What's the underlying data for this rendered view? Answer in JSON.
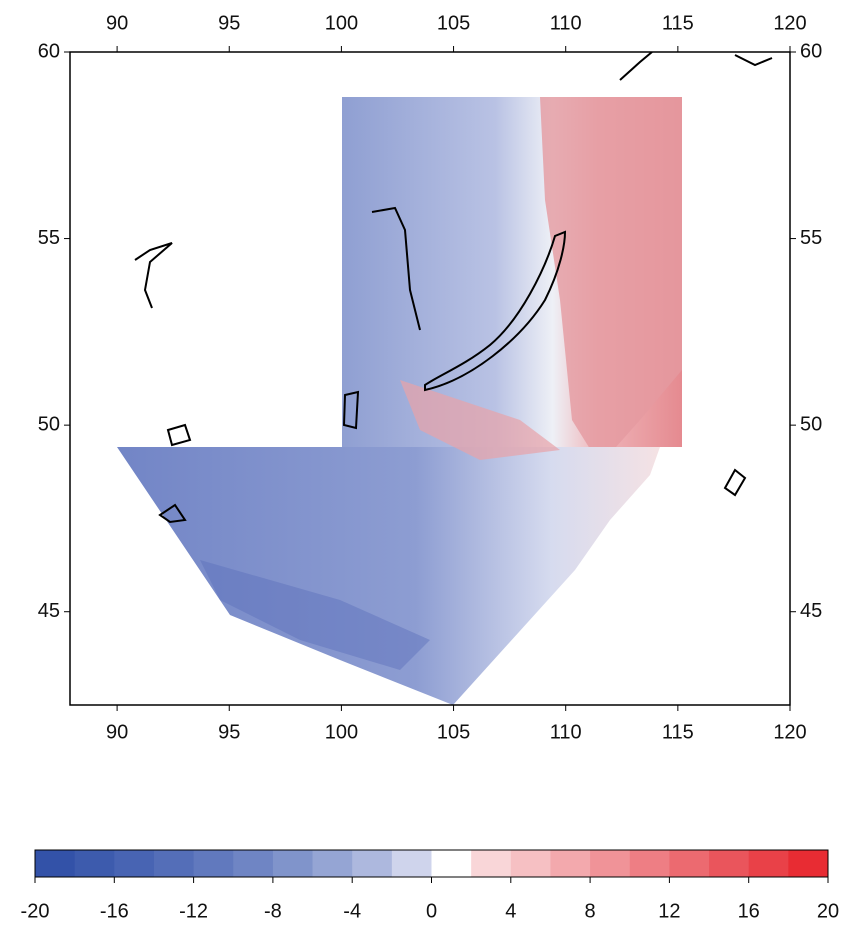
{
  "chart_data": {
    "type": "map",
    "xlim": [
      87.9,
      120
    ],
    "ylim": [
      42.5,
      60
    ],
    "xticks": [
      90,
      95,
      100,
      105,
      110,
      115,
      120
    ],
    "yticks": [
      45,
      50,
      55,
      60
    ],
    "colorbar": {
      "lim": [
        -20,
        20
      ],
      "ticks": [
        -20,
        -16,
        -12,
        -8,
        -4,
        0,
        4,
        8,
        12,
        16,
        20
      ],
      "colors": [
        "#3352a8",
        "#3d5bad",
        "#4864b3",
        "#546eb8",
        "#6179be",
        "#6f85c4",
        "#8094cb",
        "#95a5d4",
        "#adb8de",
        "#cfd4ec",
        "#ffffff",
        "#f9d6d8",
        "#f6c0c3",
        "#f3a9ad",
        "#f09398",
        "#ee7e84",
        "#ec6a70",
        "#ea555c",
        "#e94148",
        "#e82c33"
      ]
    }
  }
}
